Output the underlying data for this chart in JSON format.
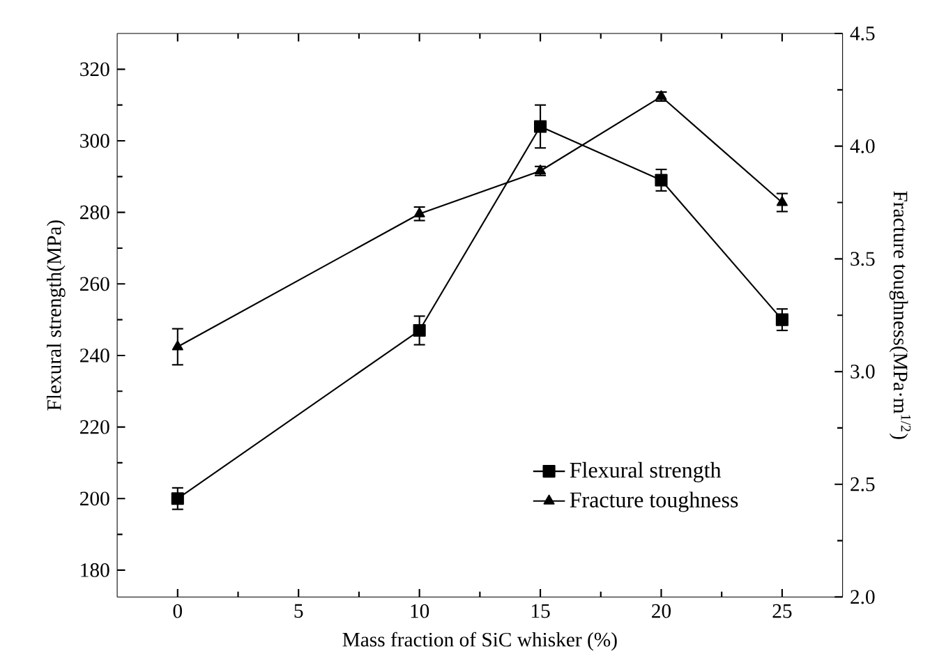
{
  "chart_data": {
    "type": "line",
    "xlabel": "Mass fraction of SiC whisker (%)",
    "ylabel": "Flexural strength(MPa)",
    "y2label": "Fracture toughness(MPa·m$^{1/2}$)",
    "x": [
      0,
      10,
      15,
      20,
      25
    ],
    "series": [
      {
        "name": "Flexural strength",
        "color": "#000000",
        "marker": "square",
        "values": [
          200,
          247,
          304,
          289,
          250
        ],
        "errors": [
          3,
          4,
          6,
          3,
          3
        ]
      },
      {
        "name": "Fracture toughness",
        "color": "#000000",
        "marker": "triangle",
        "axis": "y2",
        "values": [
          3.11,
          3.7,
          3.89,
          4.22,
          3.75
        ],
        "errors": [
          0.08,
          0.03,
          0.02,
          0.02,
          0.04
        ]
      }
    ],
    "xlim": [
      -2.5,
      27.5
    ],
    "xticks": [
      0,
      5,
      10,
      15,
      20,
      25
    ],
    "ylim": [
      172.5,
      330
    ],
    "yticks": [
      180,
      200,
      220,
      240,
      260,
      280,
      300,
      320
    ],
    "y2lim": [
      2,
      4.5
    ],
    "y2ticks": [
      {
        "value": 2,
        "label": "2.0"
      },
      {
        "value": 2.5,
        "label": "2.5"
      },
      {
        "value": 3,
        "label": "3.0"
      },
      {
        "value": 3.5,
        "label": "3.5"
      },
      {
        "value": 4,
        "label": "4.0"
      },
      {
        "value": 4.5,
        "label": "4.5"
      }
    ],
    "legend": "bottom right",
    "line_style": "solid",
    "grid": false
  }
}
